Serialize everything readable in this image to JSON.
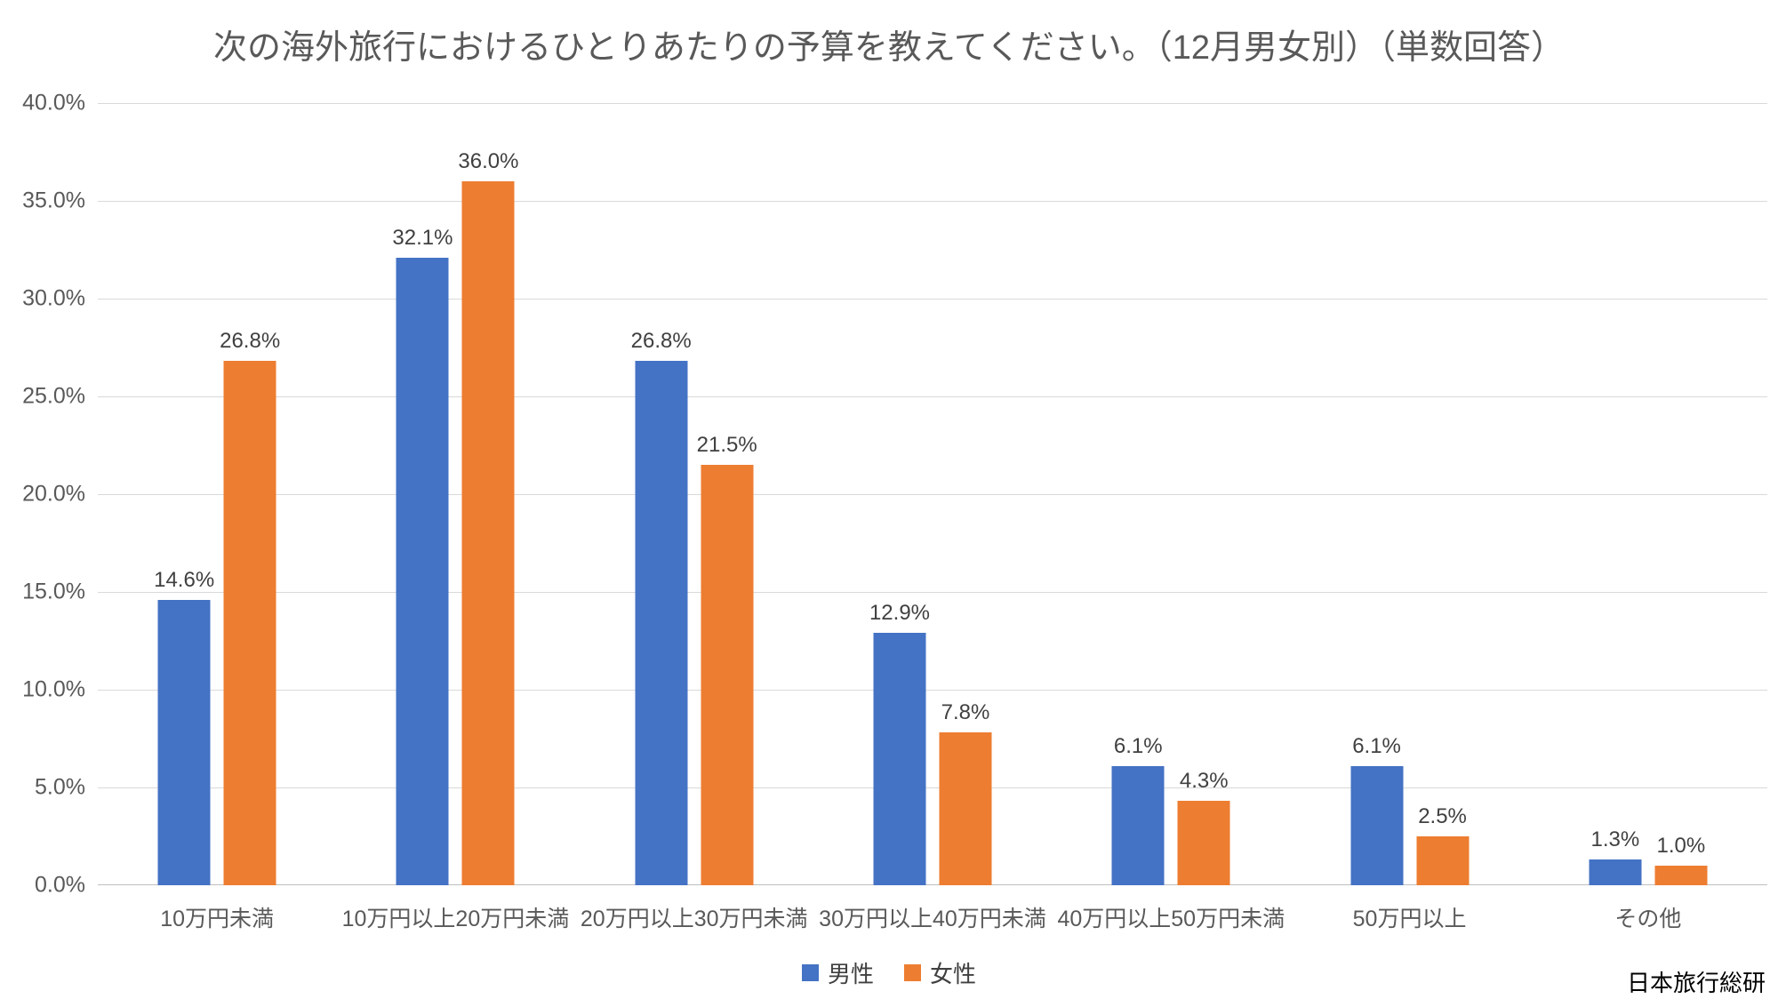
{
  "source": "日本旅行総研",
  "chart_data": {
    "type": "bar",
    "title": "次の海外旅行におけるひとりあたりの予算を教えてください。（12月男女別）（単数回答）",
    "categories": [
      "10万円未満",
      "10万円以上20万円未満",
      "20万円以上30万円未満",
      "30万円以上40万円未満",
      "40万円以上50万円未満",
      "50万円以上",
      "その他"
    ],
    "series": [
      {
        "name": "男性",
        "color": "#4472C4",
        "values": [
          14.6,
          32.1,
          26.8,
          12.9,
          6.1,
          6.1,
          1.3
        ]
      },
      {
        "name": "女性",
        "color": "#ED7D31",
        "values": [
          26.8,
          36.0,
          21.5,
          7.8,
          4.3,
          2.5,
          1.0
        ]
      }
    ],
    "xlabel": "",
    "ylabel": "",
    "ylim": [
      0,
      40
    ],
    "ytick_step": 5,
    "ytick_labels": [
      "0.0%",
      "5.0%",
      "10.0%",
      "15.0%",
      "20.0%",
      "25.0%",
      "30.0%",
      "35.0%",
      "40.0%"
    ],
    "grid": true,
    "legend_position": "bottom",
    "value_labels": true
  }
}
